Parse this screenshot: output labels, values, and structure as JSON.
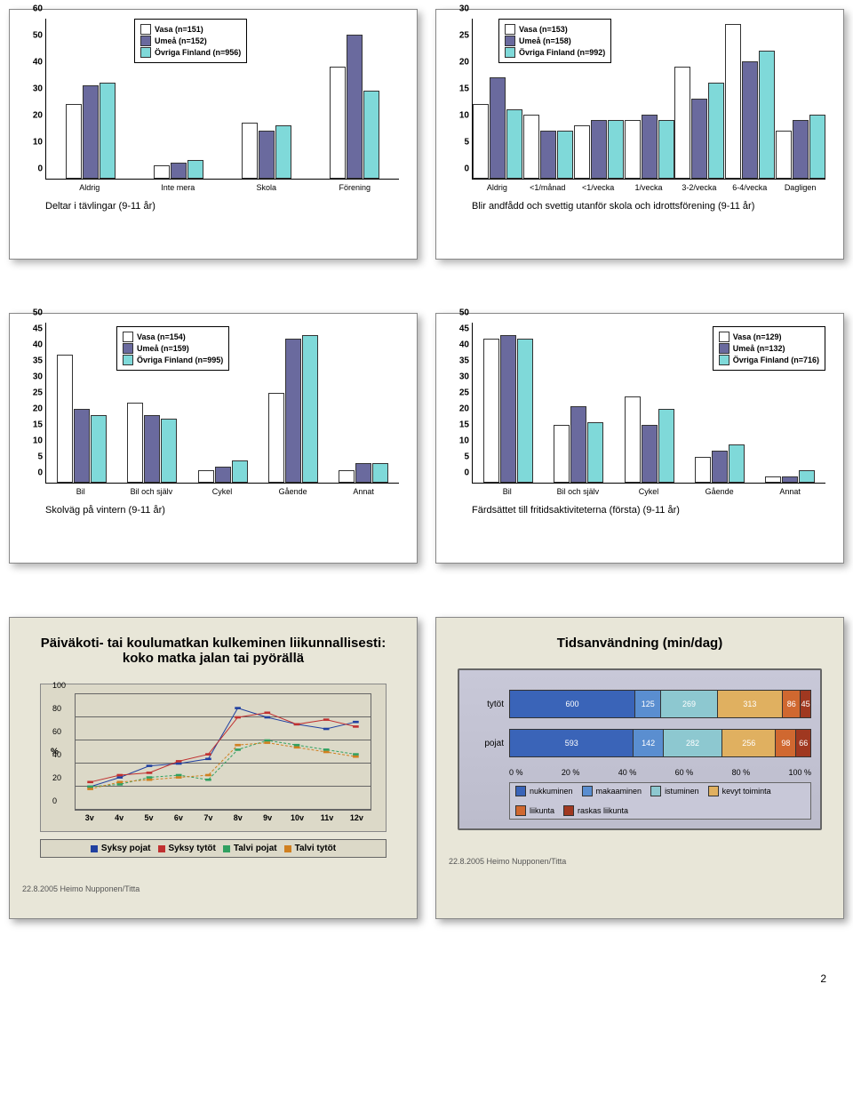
{
  "colors": {
    "vasa": "#ffffff",
    "umea": "#6a6a9e",
    "ovriga": "#7fd9d9",
    "panel_overlay": "#e8e6d8",
    "line_syksy_pojat": "#2040a0",
    "line_syksy_tytot": "#c03030",
    "line_talvi_pojat": "#30a060",
    "line_talvi_tytot": "#d08020"
  },
  "chart1": {
    "legend": [
      "Vasa (n=151)",
      "Umeå (n=152)",
      "Övriga Finland (n=956)"
    ],
    "caption": "Deltar i tävlingar (9-11 år)",
    "ymax": 60,
    "ystep": 10,
    "categories": [
      "Aldrig",
      "Inte mera",
      "Skola",
      "Förening"
    ],
    "series": [
      [
        28,
        35,
        36
      ],
      [
        5,
        6,
        7
      ],
      [
        21,
        18,
        20
      ],
      [
        42,
        54,
        33
      ]
    ]
  },
  "chart2": {
    "legend": [
      "Vasa (n=153)",
      "Umeå (n=158)",
      "Övriga Finland (n=992)"
    ],
    "caption": "Blir andfådd och svettig utanför skola och idrottsförening (9-11 år)",
    "ymax": 30,
    "ystep": 5,
    "categories": [
      "Aldrig",
      "<1/månad",
      "<1/vecka",
      "1/vecka",
      "3-2/vecka",
      "6-4/vecka",
      "Dagligen"
    ],
    "series": [
      [
        14,
        19,
        13
      ],
      [
        12,
        9,
        9
      ],
      [
        10,
        11,
        11
      ],
      [
        11,
        12,
        11
      ],
      [
        21,
        15,
        18
      ],
      [
        29,
        22,
        24
      ],
      [
        9,
        11,
        12
      ]
    ]
  },
  "chart3": {
    "legend": [
      "Vasa (n=154)",
      "Umeå (n=159)",
      "Övriga Finland (n=995)"
    ],
    "caption": "Skolväg på vintern (9-11 år)",
    "ymax": 50,
    "ystep": 5,
    "categories": [
      "Bil",
      "Bil och själv",
      "Cykel",
      "Gående",
      "Annat"
    ],
    "series": [
      [
        40,
        23,
        21
      ],
      [
        25,
        21,
        20
      ],
      [
        4,
        5,
        7
      ],
      [
        28,
        45,
        46
      ],
      [
        4,
        6,
        6
      ]
    ]
  },
  "chart4": {
    "legend": [
      "Vasa (n=129)",
      "Umeå (n=132)",
      "Övriga Finland (n=716)"
    ],
    "caption": "Färdsättet till fritidsaktiviteterna (första) (9-11 år)",
    "ymax": 50,
    "ystep": 5,
    "categories": [
      "Bil",
      "Bil och själv",
      "Cykel",
      "Gående",
      "Annat"
    ],
    "series": [
      [
        45,
        46,
        45
      ],
      [
        18,
        24,
        19
      ],
      [
        27,
        18,
        23
      ],
      [
        8,
        10,
        12
      ],
      [
        2,
        2,
        4
      ]
    ]
  },
  "line_chart": {
    "title": "Päiväkoti- tai koulumatkan kulkeminen liikunnallisesti: koko matka jalan tai pyörällä",
    "ylabel": "%",
    "ymax": 100,
    "ystep": 20,
    "categories": [
      "3v",
      "4v",
      "5v",
      "6v",
      "7v",
      "8v",
      "9v",
      "10v",
      "11v",
      "12v"
    ],
    "legend": [
      "Syksy pojat",
      "Syksy tytöt",
      "Talvi pojat",
      "Talvi tytöt"
    ],
    "series": {
      "syksy_pojat": [
        20,
        28,
        38,
        40,
        44,
        88,
        80,
        74,
        70,
        76
      ],
      "syksy_tytot": [
        24,
        30,
        32,
        42,
        48,
        80,
        84,
        74,
        78,
        72
      ],
      "talvi_pojat": [
        20,
        22,
        28,
        30,
        26,
        52,
        60,
        56,
        52,
        48
      ],
      "talvi_tytot": [
        18,
        24,
        26,
        28,
        30,
        56,
        58,
        54,
        50,
        46
      ]
    }
  },
  "stacked": {
    "title": "Tidsanvändning (min/dag)",
    "rows": [
      {
        "label": "tytöt",
        "segs": [
          {
            "v": 600,
            "c": "#3a64b8"
          },
          {
            "v": 125,
            "c": "#5a8ed0"
          },
          {
            "v": 269,
            "c": "#8dc8d0"
          },
          {
            "v": 313,
            "c": "#e0b060"
          },
          {
            "v": 86,
            "c": "#d06830"
          },
          {
            "v": 45,
            "c": "#a03820"
          }
        ]
      },
      {
        "label": "pojat",
        "segs": [
          {
            "v": 593,
            "c": "#3a64b8"
          },
          {
            "v": 142,
            "c": "#5a8ed0"
          },
          {
            "v": 282,
            "c": "#8dc8d0"
          },
          {
            "v": 256,
            "c": "#e0b060"
          },
          {
            "v": 98,
            "c": "#d06830"
          },
          {
            "v": 66,
            "c": "#a03820"
          }
        ]
      }
    ],
    "xticks": [
      "0 %",
      "20 %",
      "40 %",
      "60 %",
      "80 %",
      "100 %"
    ],
    "legend": [
      {
        "l": "nukkuminen",
        "c": "#3a64b8"
      },
      {
        "l": "makaaminen",
        "c": "#5a8ed0"
      },
      {
        "l": "istuminen",
        "c": "#8dc8d0"
      },
      {
        "l": "kevyt toiminta",
        "c": "#e0b060"
      },
      {
        "l": "liikunta",
        "c": "#d06830"
      },
      {
        "l": "raskas liikunta",
        "c": "#a03820"
      }
    ]
  },
  "footer": "22.8.2005 Heimo Nupponen/Titta",
  "page": "2"
}
